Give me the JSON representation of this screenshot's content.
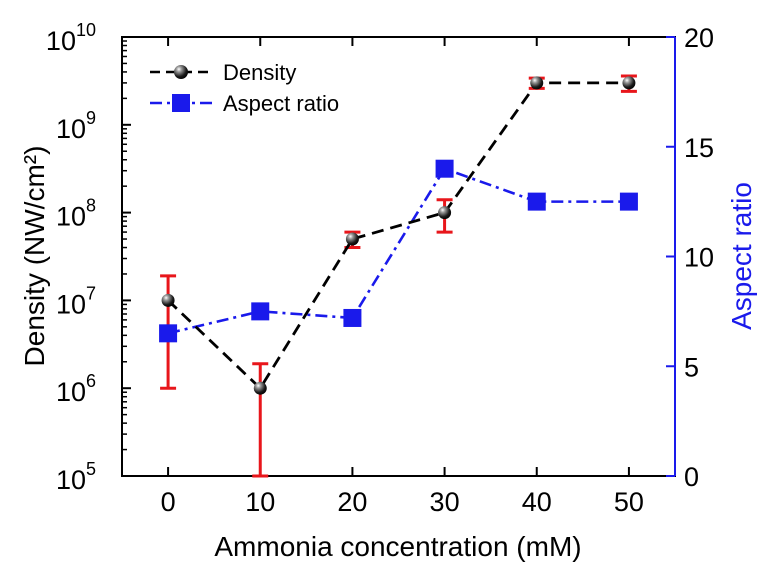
{
  "chart_data": {
    "type": "line",
    "xlabel": "Ammonia concentration (mM)",
    "ylabel_left": "Density (NW/cm²)",
    "ylabel_right": "Aspect ratio",
    "x": [
      0,
      10,
      20,
      30,
      40,
      50
    ],
    "xlim": [
      -5,
      55
    ],
    "x_ticks": [
      0,
      10,
      20,
      30,
      40,
      50
    ],
    "x_tick_labels": [
      "0",
      "10",
      "20",
      "30",
      "40",
      "50"
    ],
    "y_left_scale": "log",
    "y_left_lim": [
      100000,
      10000000000
    ],
    "y_left_tick_labels": [
      {
        "base": "10",
        "exp": "5"
      },
      {
        "base": "10",
        "exp": "6"
      },
      {
        "base": "10",
        "exp": "7"
      },
      {
        "base": "10",
        "exp": "8"
      },
      {
        "base": "10",
        "exp": "9"
      },
      {
        "base": "10",
        "exp": "10"
      }
    ],
    "y_right_lim": [
      0,
      20
    ],
    "y_right_ticks": [
      0,
      5,
      10,
      15,
      20
    ],
    "y_right_tick_labels": [
      "0",
      "5",
      "10",
      "15",
      "20"
    ],
    "legend_position": "top-left",
    "series": [
      {
        "name": "Density",
        "axis": "left",
        "marker": "sphere",
        "line_style": "dashed",
        "color": "#000000",
        "error_color": "#e8161b",
        "values": [
          10000000,
          1000000,
          50000000,
          100000000,
          3000000000,
          3000000000
        ],
        "error_low": [
          1000000,
          100000,
          40000000,
          60000000,
          2600000000,
          2400000000
        ],
        "error_high": [
          19000000,
          1900000,
          60000000,
          140000000,
          3400000000,
          3600000000
        ]
      },
      {
        "name": "Aspect ratio",
        "axis": "right",
        "marker": "square",
        "line_style": "dash-dot",
        "color": "#1a1aeb",
        "values": [
          6.5,
          7.5,
          7.2,
          14,
          12.5,
          12.5
        ]
      }
    ],
    "grid": false,
    "right_axis_color": "#1a1aeb"
  }
}
